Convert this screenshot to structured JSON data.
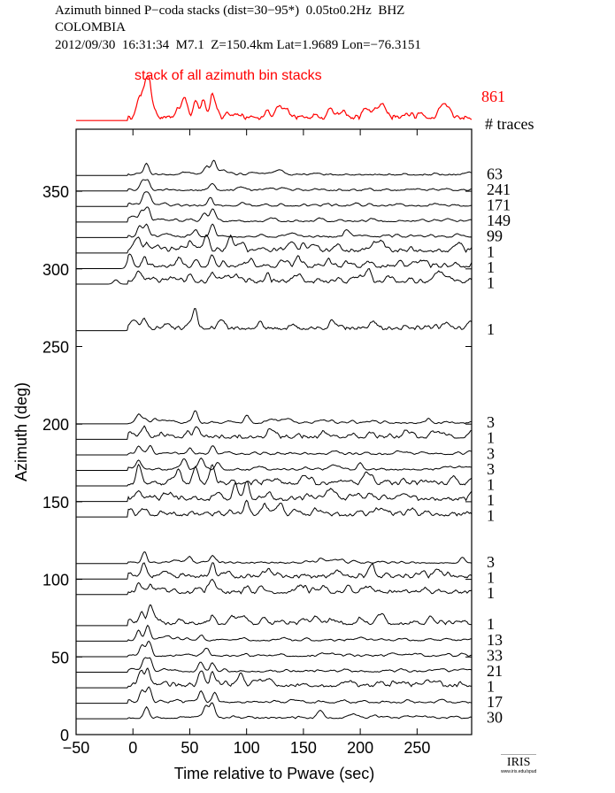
{
  "header": {
    "line1": "Azimuth binned P−coda stacks (dist=30−95*)  0.05to0.2Hz  BHZ",
    "line2": "COLOMBIA",
    "line3": "2012/09/30  16:31:34  M7.1  Z=150.4km Lat=1.9689 Lon=−76.3151"
  },
  "logo": {
    "name": "IRIS",
    "url_text": "www.iris.edu/spud"
  },
  "colors": {
    "stack": "#ff0000",
    "trace": "#000000"
  },
  "chart_data": {
    "type": "line",
    "title": "Azimuth binned P-coda stacks",
    "xlabel": "Time relative to Pwave (sec)",
    "ylabel": "Azimuth (deg)",
    "xlim": [
      -50,
      298
    ],
    "ylim": [
      0,
      390
    ],
    "xticks": [
      "−50",
      "0",
      "50",
      "100",
      "150",
      "200",
      "250"
    ],
    "xtick_values": [
      -50,
      0,
      50,
      100,
      150,
      200,
      250
    ],
    "yticks": [
      "0",
      "50",
      "100",
      "150",
      "200",
      "250",
      "300",
      "350"
    ],
    "ytick_values": [
      0,
      50,
      100,
      150,
      200,
      250,
      300,
      350
    ],
    "stack": {
      "label": "stack of all azimuth bin stacks",
      "count": "861",
      "count_header": "# traces",
      "peaks": [
        [
          5,
          0.55
        ],
        [
          10,
          0.75
        ],
        [
          14,
          1.0
        ],
        [
          45,
          0.35
        ],
        [
          55,
          0.45
        ],
        [
          62,
          0.5
        ],
        [
          70,
          0.7
        ],
        [
          90,
          0.15
        ],
        [
          120,
          0.12
        ],
        [
          160,
          0.1
        ]
      ]
    },
    "traces": [
      {
        "azimuth": 360,
        "count": "63",
        "peaks": [
          [
            12,
            0.8
          ],
          [
            65,
            0.6
          ],
          [
            71,
            0.9
          ]
        ]
      },
      {
        "azimuth": 350,
        "count": "241",
        "peaks": [
          [
            8,
            0.6
          ],
          [
            13,
            0.7
          ],
          [
            70,
            0.5
          ]
        ]
      },
      {
        "azimuth": 340,
        "count": "171",
        "peaks": [
          [
            10,
            0.7
          ],
          [
            14,
            0.8
          ],
          [
            68,
            0.6
          ]
        ]
      },
      {
        "azimuth": 330,
        "count": "149",
        "peaks": [
          [
            8,
            0.7
          ],
          [
            13,
            0.9
          ],
          [
            63,
            0.6
          ],
          [
            70,
            0.8
          ]
        ]
      },
      {
        "azimuth": 320,
        "count": "99",
        "peaks": [
          [
            6,
            0.8
          ],
          [
            12,
            0.9
          ],
          [
            55,
            0.5
          ],
          [
            70,
            0.9
          ],
          [
            188,
            0.5
          ]
        ]
      },
      {
        "azimuth": 310,
        "count": "1",
        "peaks": [
          [
            5,
            0.8
          ],
          [
            12,
            0.6
          ],
          [
            50,
            0.6
          ],
          [
            65,
            1.0
          ],
          [
            86,
            0.7
          ],
          [
            150,
            0.6
          ]
        ]
      },
      {
        "azimuth": 300,
        "count": "1",
        "peaks": [
          [
            -3,
            0.8
          ],
          [
            10,
            0.6
          ],
          [
            40,
            0.6
          ],
          [
            70,
            0.8
          ],
          [
            145,
            0.7
          ],
          [
            172,
            0.6
          ],
          [
            235,
            0.5
          ]
        ]
      },
      {
        "azimuth": 290,
        "count": "1",
        "peaks": [
          [
            -15,
            0.3
          ],
          [
            5,
            0.4
          ],
          [
            50,
            0.6
          ],
          [
            70,
            0.7
          ],
          [
            90,
            0.4
          ],
          [
            118,
            0.4
          ],
          [
            208,
            0.5
          ]
        ]
      },
      {
        "azimuth": 260,
        "count": "1",
        "peaks": [
          [
            0,
            0.5
          ],
          [
            10,
            0.6
          ],
          [
            55,
            0.9
          ],
          [
            112,
            0.5
          ],
          [
            175,
            0.7
          ]
        ]
      },
      {
        "azimuth": 200,
        "count": "3",
        "peaks": [
          [
            5,
            0.4
          ],
          [
            20,
            0.3
          ],
          [
            55,
            0.7
          ],
          [
            100,
            0.4
          ],
          [
            260,
            0.3
          ]
        ]
      },
      {
        "azimuth": 190,
        "count": "1",
        "peaks": [
          [
            10,
            0.8
          ],
          [
            25,
            0.3
          ],
          [
            55,
            0.6
          ],
          [
            120,
            0.4
          ],
          [
            240,
            0.5
          ]
        ]
      },
      {
        "azimuth": 180,
        "count": "3",
        "peaks": [
          [
            5,
            0.6
          ],
          [
            15,
            0.6
          ],
          [
            50,
            0.4
          ],
          [
            70,
            0.6
          ]
        ]
      },
      {
        "azimuth": 170,
        "count": "3",
        "peaks": [
          [
            5,
            0.5
          ],
          [
            45,
            0.7
          ],
          [
            60,
            0.6
          ],
          [
            75,
            0.5
          ],
          [
            200,
            0.5
          ]
        ]
      },
      {
        "azimuth": 160,
        "count": "1",
        "peaks": [
          [
            5,
            1.0
          ],
          [
            40,
            1.0
          ],
          [
            55,
            1.2
          ],
          [
            70,
            1.0
          ],
          [
            150,
            0.6
          ],
          [
            205,
            0.8
          ]
        ]
      },
      {
        "azimuth": 150,
        "count": "1",
        "peaks": [
          [
            5,
            0.5
          ],
          [
            90,
            1.0
          ],
          [
            100,
            1.2
          ],
          [
            120,
            0.5
          ]
        ]
      },
      {
        "azimuth": 140,
        "count": "1",
        "peaks": [
          [
            100,
            1.0
          ],
          [
            115,
            0.6
          ],
          [
            130,
            0.4
          ]
        ]
      },
      {
        "azimuth": 110,
        "count": "3",
        "peaks": [
          [
            10,
            0.7
          ],
          [
            50,
            0.4
          ],
          [
            70,
            0.4
          ],
          [
            165,
            0.3
          ],
          [
            290,
            0.4
          ]
        ]
      },
      {
        "azimuth": 100,
        "count": "1",
        "peaks": [
          [
            10,
            0.8
          ],
          [
            70,
            0.9
          ],
          [
            120,
            0.5
          ],
          [
            210,
            0.6
          ]
        ]
      },
      {
        "azimuth": 90,
        "count": "1",
        "peaks": [
          [
            5,
            0.6
          ],
          [
            15,
            0.5
          ],
          [
            70,
            0.7
          ],
          [
            150,
            0.4
          ]
        ]
      },
      {
        "azimuth": 70,
        "count": "1",
        "peaks": [
          [
            8,
            0.7
          ],
          [
            15,
            1.0
          ],
          [
            70,
            0.5
          ],
          [
            200,
            0.4
          ]
        ]
      },
      {
        "azimuth": 60,
        "count": "13",
        "peaks": [
          [
            5,
            0.7
          ],
          [
            13,
            1.0
          ],
          [
            60,
            0.4
          ]
        ]
      },
      {
        "azimuth": 50,
        "count": "33",
        "peaks": [
          [
            8,
            0.8
          ],
          [
            14,
            1.0
          ],
          [
            65,
            0.4
          ]
        ]
      },
      {
        "azimuth": 40,
        "count": "21",
        "peaks": [
          [
            10,
            0.9
          ],
          [
            15,
            0.9
          ],
          [
            60,
            0.6
          ],
          [
            70,
            0.6
          ]
        ]
      },
      {
        "azimuth": 30,
        "count": "1",
        "peaks": [
          [
            7,
            0.9
          ],
          [
            13,
            1.0
          ],
          [
            60,
            0.7
          ],
          [
            70,
            0.8
          ],
          [
            95,
            0.5
          ]
        ]
      },
      {
        "azimuth": 20,
        "count": "17",
        "peaks": [
          [
            8,
            0.9
          ],
          [
            14,
            1.0
          ],
          [
            60,
            0.7
          ],
          [
            72,
            0.7
          ]
        ]
      },
      {
        "azimuth": 10,
        "count": "30",
        "peaks": [
          [
            12,
            0.8
          ],
          [
            64,
            0.8
          ],
          [
            70,
            1.0
          ],
          [
            165,
            0.4
          ]
        ]
      }
    ]
  }
}
